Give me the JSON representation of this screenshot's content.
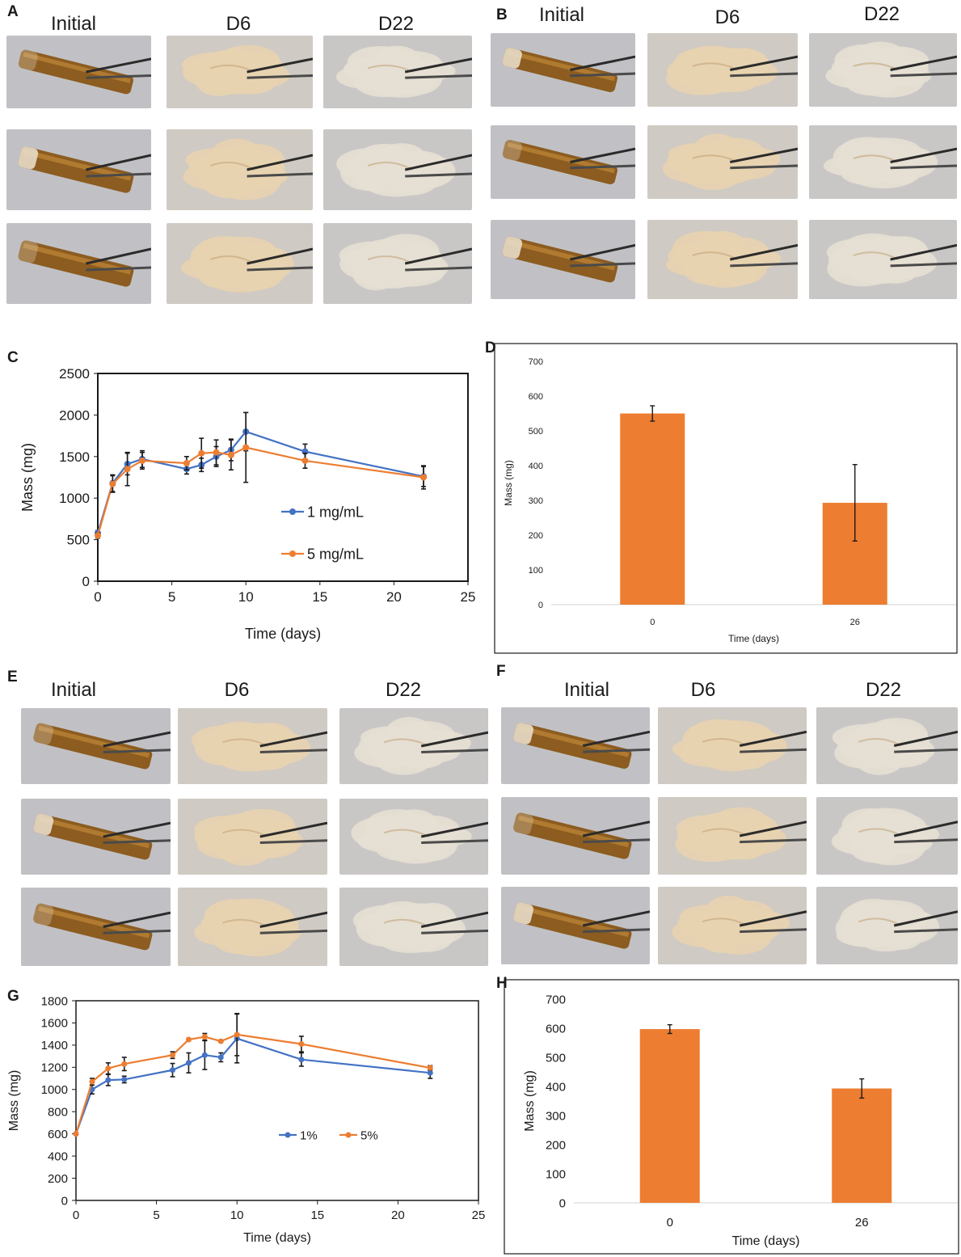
{
  "photo_panels": [
    {
      "letter": "A",
      "headers": [
        "Initial",
        "D6",
        "D22"
      ]
    },
    {
      "letter": "B",
      "headers": [
        "Initial",
        "D6",
        "D22"
      ]
    },
    {
      "letter": "E",
      "headers": [
        "Initial",
        "D6",
        "D22"
      ]
    },
    {
      "letter": "F",
      "headers": [
        "Initial",
        "D6",
        "D22"
      ]
    }
  ],
  "colors": {
    "blue": "#4472c4",
    "orange": "#ed7d31",
    "err": "#1a1a1a"
  },
  "chart_data": [
    {
      "panel": "C",
      "type": "line",
      "xlabel": "Time (days)",
      "ylabel": "Mass (mg)",
      "xlim": [
        0,
        25
      ],
      "ylim": [
        0,
        2500
      ],
      "xticks": [
        0,
        5,
        10,
        15,
        20,
        25
      ],
      "yticks": [
        0,
        500,
        1000,
        1500,
        2000,
        2500
      ],
      "legend": "center-right",
      "series": [
        {
          "name": "1 mg/mL",
          "color": "#4472c4",
          "x": [
            0,
            1,
            2,
            3,
            6,
            7,
            8,
            9,
            10,
            14,
            22
          ],
          "y": [
            580,
            1180,
            1410,
            1470,
            1350,
            1400,
            1500,
            1580,
            1800,
            1560,
            1260
          ],
          "err": [
            30,
            100,
            130,
            100,
            60,
            80,
            120,
            130,
            230,
            90,
            120
          ]
        },
        {
          "name": "5 mg/mL",
          "color": "#ed7d31",
          "x": [
            0,
            1,
            2,
            3,
            6,
            7,
            8,
            9,
            10,
            14,
            22
          ],
          "y": [
            550,
            1170,
            1350,
            1450,
            1420,
            1540,
            1550,
            1520,
            1610,
            1450,
            1250
          ],
          "err": [
            30,
            100,
            200,
            100,
            80,
            180,
            150,
            180,
            420,
            90,
            140
          ]
        }
      ]
    },
    {
      "panel": "D",
      "type": "bar",
      "xlabel": "Time (days)",
      "ylabel": "Mass (mg)",
      "ylim": [
        0,
        700
      ],
      "yticks": [
        0,
        100,
        200,
        300,
        400,
        500,
        600,
        700
      ],
      "categories": [
        "0",
        "26"
      ],
      "values": [
        550,
        293
      ],
      "err": [
        22,
        110
      ],
      "color": "#ed7d31"
    },
    {
      "panel": "G",
      "type": "line",
      "xlabel": "Time (days)",
      "ylabel": "Mass (mg)",
      "xlim": [
        0,
        25
      ],
      "ylim": [
        0,
        1800
      ],
      "xticks": [
        0,
        5,
        10,
        15,
        20,
        25
      ],
      "yticks": [
        0,
        200,
        400,
        600,
        800,
        1000,
        1200,
        1400,
        1600,
        1800
      ],
      "legend": "center-right",
      "series": [
        {
          "name": "1%",
          "color": "#4472c4",
          "x": [
            0,
            1,
            2,
            3,
            6,
            7,
            8,
            9,
            10,
            14,
            22
          ],
          "y": [
            600,
            1000,
            1085,
            1090,
            1175,
            1240,
            1310,
            1290,
            1460,
            1270,
            1150
          ],
          "err": [
            10,
            40,
            50,
            30,
            60,
            90,
            130,
            40,
            220,
            60,
            50
          ]
        },
        {
          "name": "5%",
          "color": "#ed7d31",
          "x": [
            0,
            1,
            2,
            3,
            6,
            7,
            8,
            9,
            10,
            14,
            22
          ],
          "y": [
            600,
            1070,
            1190,
            1230,
            1310,
            1450,
            1475,
            1435,
            1495,
            1410,
            1195
          ],
          "err": [
            10,
            30,
            50,
            60,
            30,
            10,
            30,
            10,
            190,
            70,
            20
          ]
        }
      ]
    },
    {
      "panel": "H",
      "type": "bar",
      "xlabel": "Time (days)",
      "ylabel": "Mass (mg)",
      "ylim": [
        0,
        700
      ],
      "yticks": [
        0,
        100,
        200,
        300,
        400,
        500,
        600,
        700
      ],
      "categories": [
        "0",
        "26"
      ],
      "values": [
        597,
        393
      ],
      "err": [
        15,
        33
      ],
      "color": "#ed7d31"
    }
  ]
}
